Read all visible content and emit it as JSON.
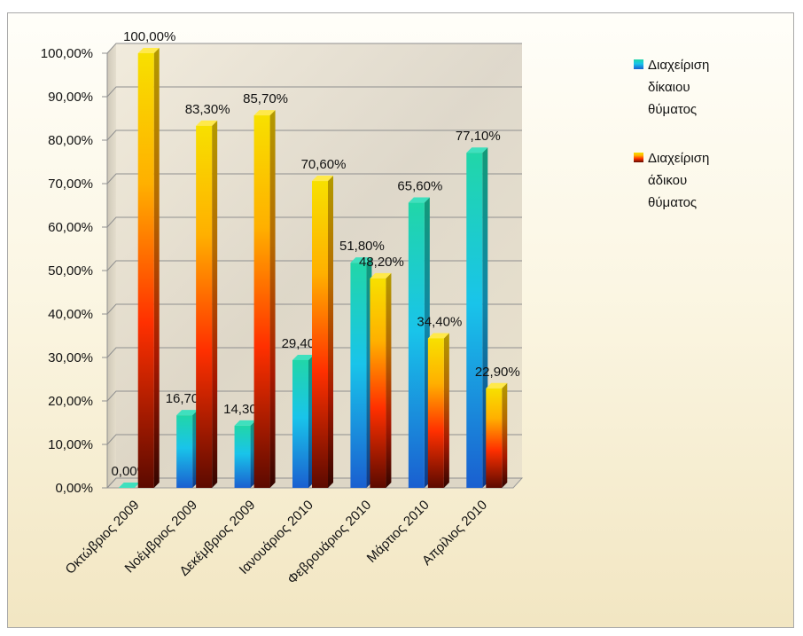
{
  "chart_data": {
    "type": "bar",
    "title": "",
    "xlabel": "",
    "ylabel": "",
    "ylim": [
      0,
      100
    ],
    "y_ticks": [
      "0,00%",
      "10,00%",
      "20,00%",
      "30,00%",
      "40,00%",
      "50,00%",
      "60,00%",
      "70,00%",
      "80,00%",
      "90,00%",
      "100,00%"
    ],
    "y_tick_values": [
      0,
      10,
      20,
      30,
      40,
      50,
      60,
      70,
      80,
      90,
      100
    ],
    "categories": [
      "Οκτώβριος 2009",
      "Νοέμβριος 2009",
      "Δεκέμβριος 2009",
      "Ιανουάριος 2010",
      "Φεβρουάριος 2010",
      "Μάρτιος 2010",
      "Απρίλιος 2010"
    ],
    "series": [
      {
        "name": "Διαχείριση δίκαιου θύματος",
        "legend_lines": [
          "Διαχείριση",
          "δίκαιου",
          "θύματος"
        ],
        "values": [
          0.0,
          16.7,
          14.3,
          29.4,
          51.8,
          65.6,
          77.1
        ],
        "labels": [
          "0,00%",
          "16,70%",
          "14,30%",
          "29,40%",
          "51,80%",
          "65,60%",
          "77,10%"
        ],
        "color": "#1aa6e0"
      },
      {
        "name": "Διαχείριση άδικου θύματος",
        "legend_lines": [
          "Διαχείριση",
          "άδικου",
          "θύματος"
        ],
        "values": [
          100.0,
          83.3,
          85.7,
          70.6,
          48.2,
          34.4,
          22.9
        ],
        "labels": [
          "100,00%",
          "83,30%",
          "85,70%",
          "70,60%",
          "48,20%",
          "34,40%",
          "22,90%"
        ],
        "color": "#f5c400"
      }
    ],
    "grid": true,
    "legend_position": "right",
    "style": "3d-bars-gradient",
    "label_format": "percent, comma decimal"
  }
}
